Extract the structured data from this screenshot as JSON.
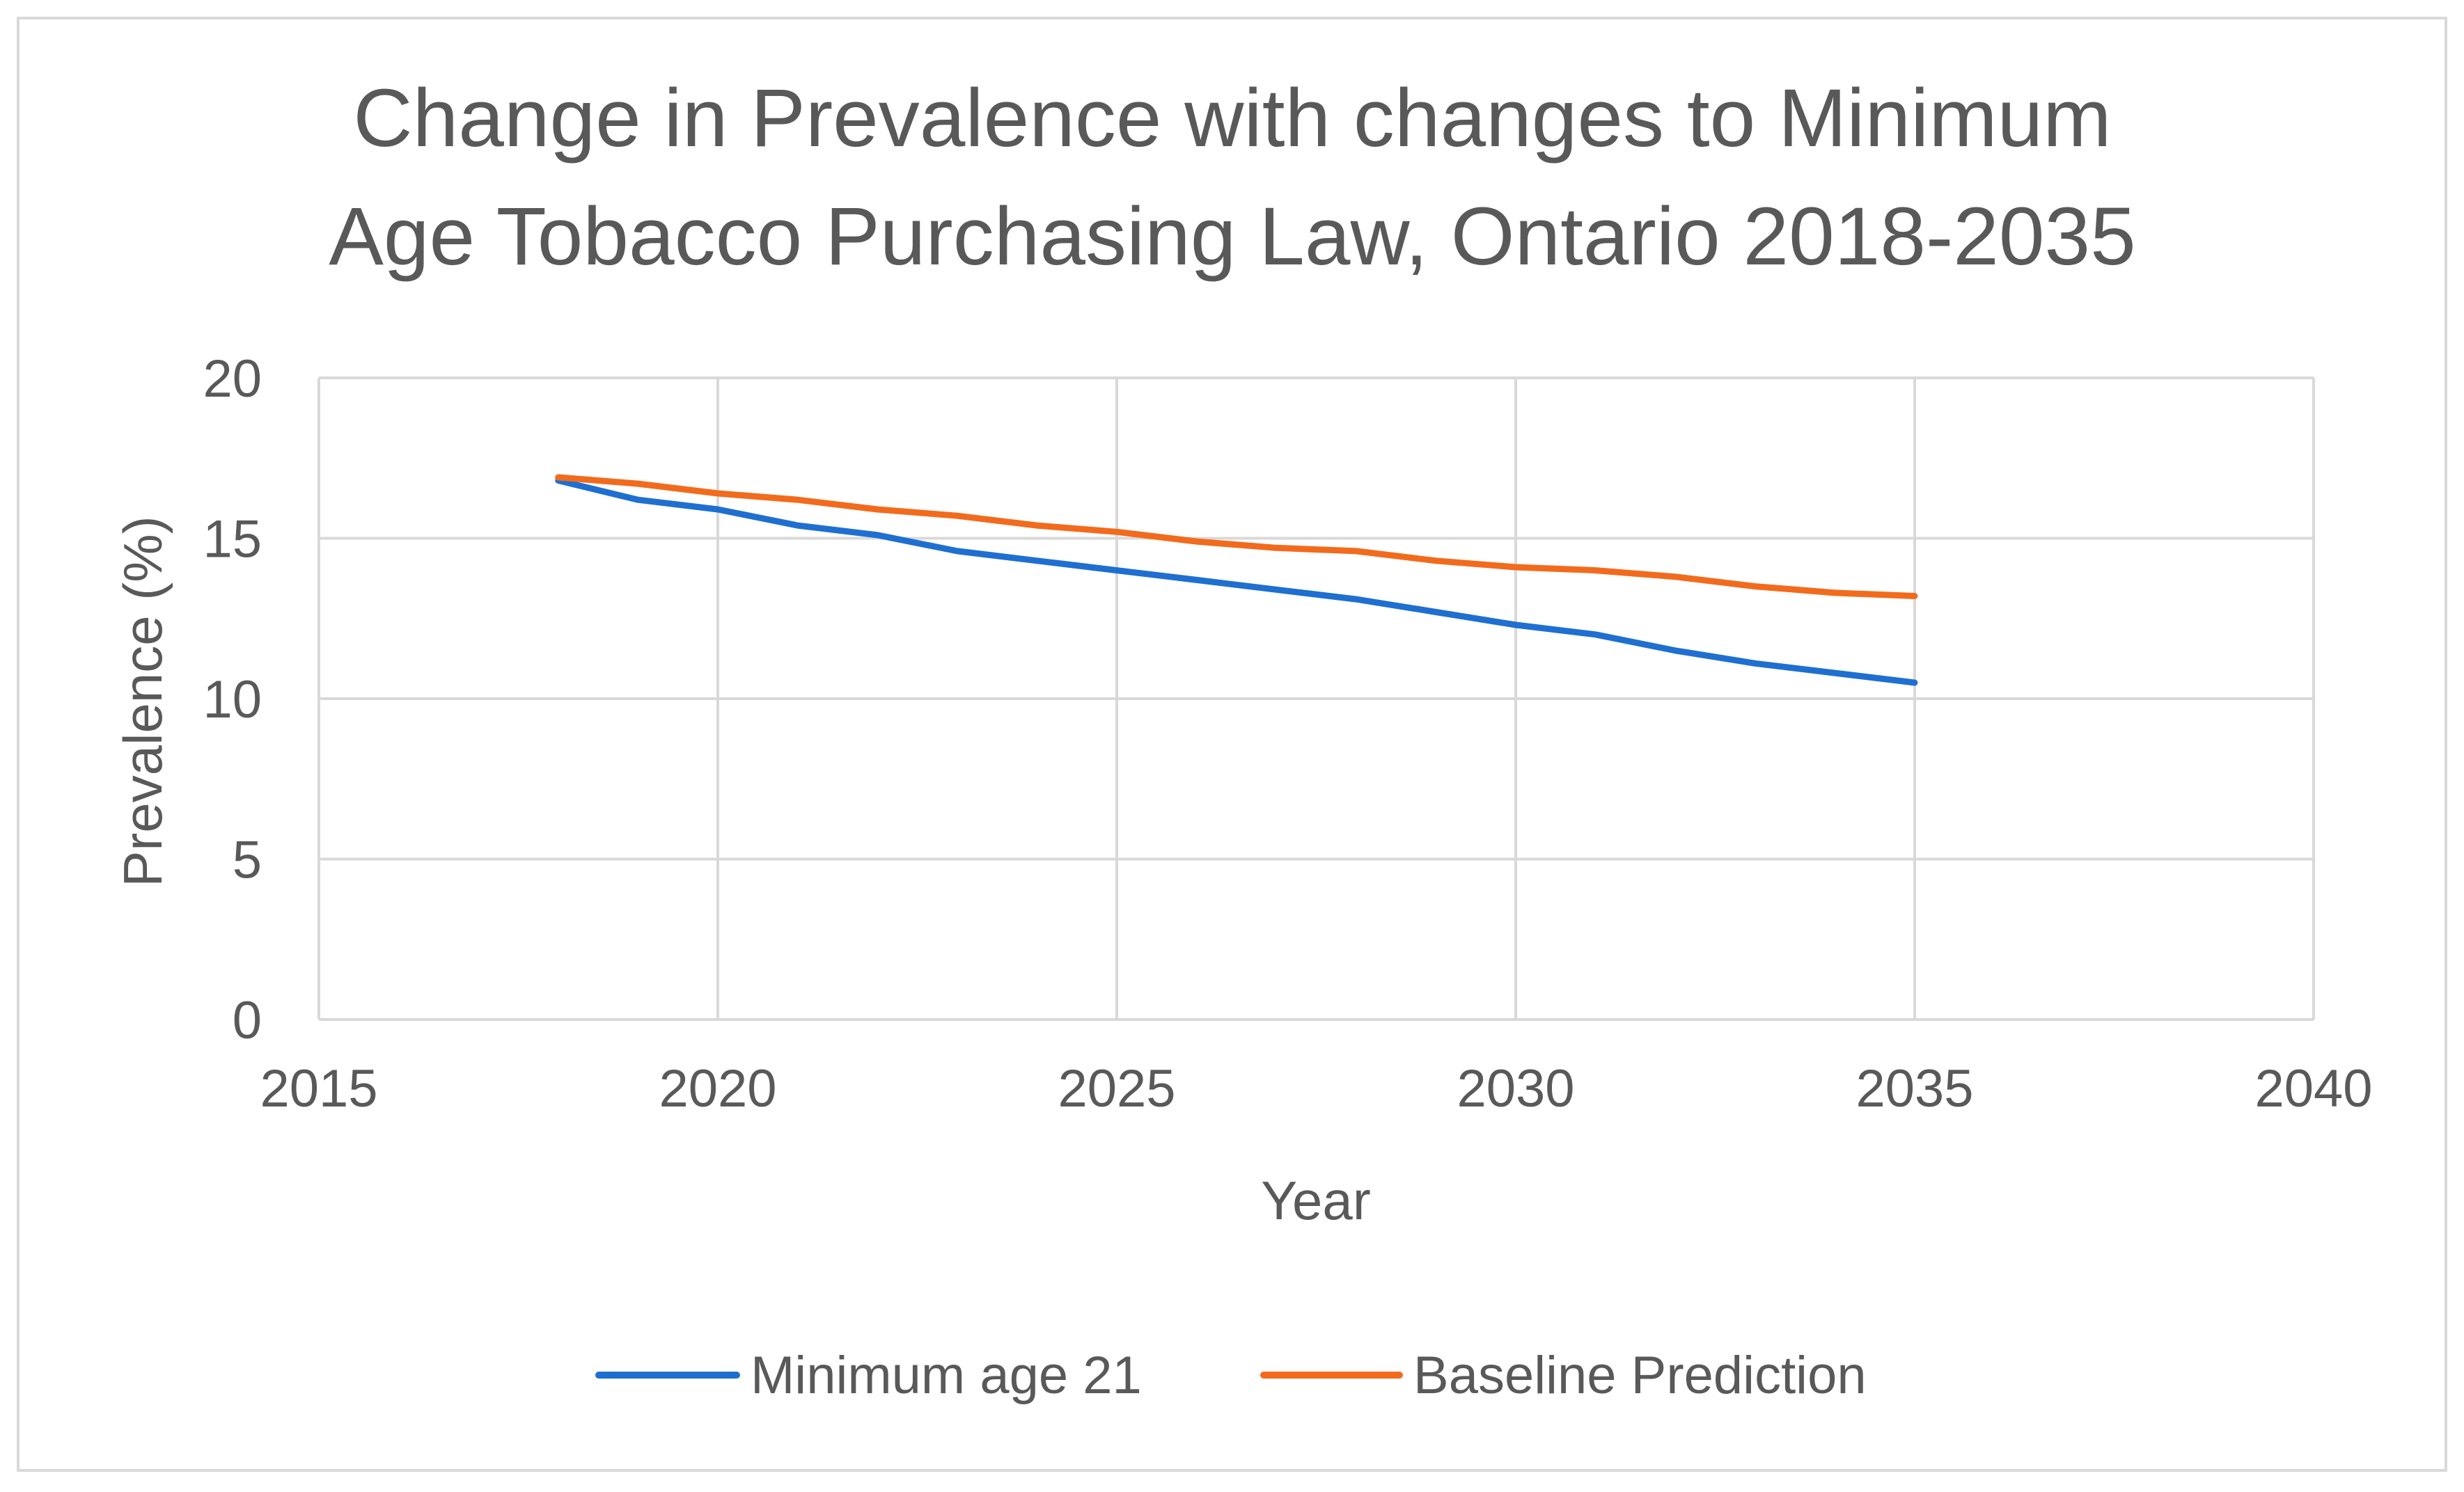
{
  "chart_data": {
    "type": "line",
    "title_lines": [
      "Change in Prevalence with changes to Minimum",
      "Age Tobacco Purchasing Law, Ontario 2018-2035"
    ],
    "xlabel": "Year",
    "ylabel": "Prevalence (%)",
    "xlim": [
      2015,
      2040
    ],
    "ylim": [
      0,
      20
    ],
    "x_ticks": [
      2015,
      2020,
      2025,
      2030,
      2035,
      2040
    ],
    "y_ticks": [
      0,
      5,
      10,
      15,
      20
    ],
    "grid": true,
    "legend_position": "bottom",
    "x": [
      2018,
      2019,
      2020,
      2021,
      2022,
      2023,
      2024,
      2025,
      2026,
      2027,
      2028,
      2029,
      2030,
      2031,
      2032,
      2033,
      2034,
      2035
    ],
    "series": [
      {
        "name": "Minimum age 21",
        "color": "#1f6fd1",
        "values": [
          16.8,
          16.2,
          15.9,
          15.4,
          15.1,
          14.6,
          14.3,
          14.0,
          13.7,
          13.4,
          13.1,
          12.7,
          12.3,
          12.0,
          11.5,
          11.1,
          10.8,
          10.5
        ]
      },
      {
        "name": "Baseline Prediction",
        "color": "#f26b1d",
        "values": [
          16.9,
          16.7,
          16.4,
          16.2,
          15.9,
          15.7,
          15.4,
          15.2,
          14.9,
          14.7,
          14.6,
          14.3,
          14.1,
          14.0,
          13.8,
          13.5,
          13.3,
          13.2
        ]
      }
    ]
  },
  "colors": {
    "background": "#ffffff",
    "border": "#d9d9d9",
    "gridline": "#d9d9d9",
    "text": "#595959"
  }
}
